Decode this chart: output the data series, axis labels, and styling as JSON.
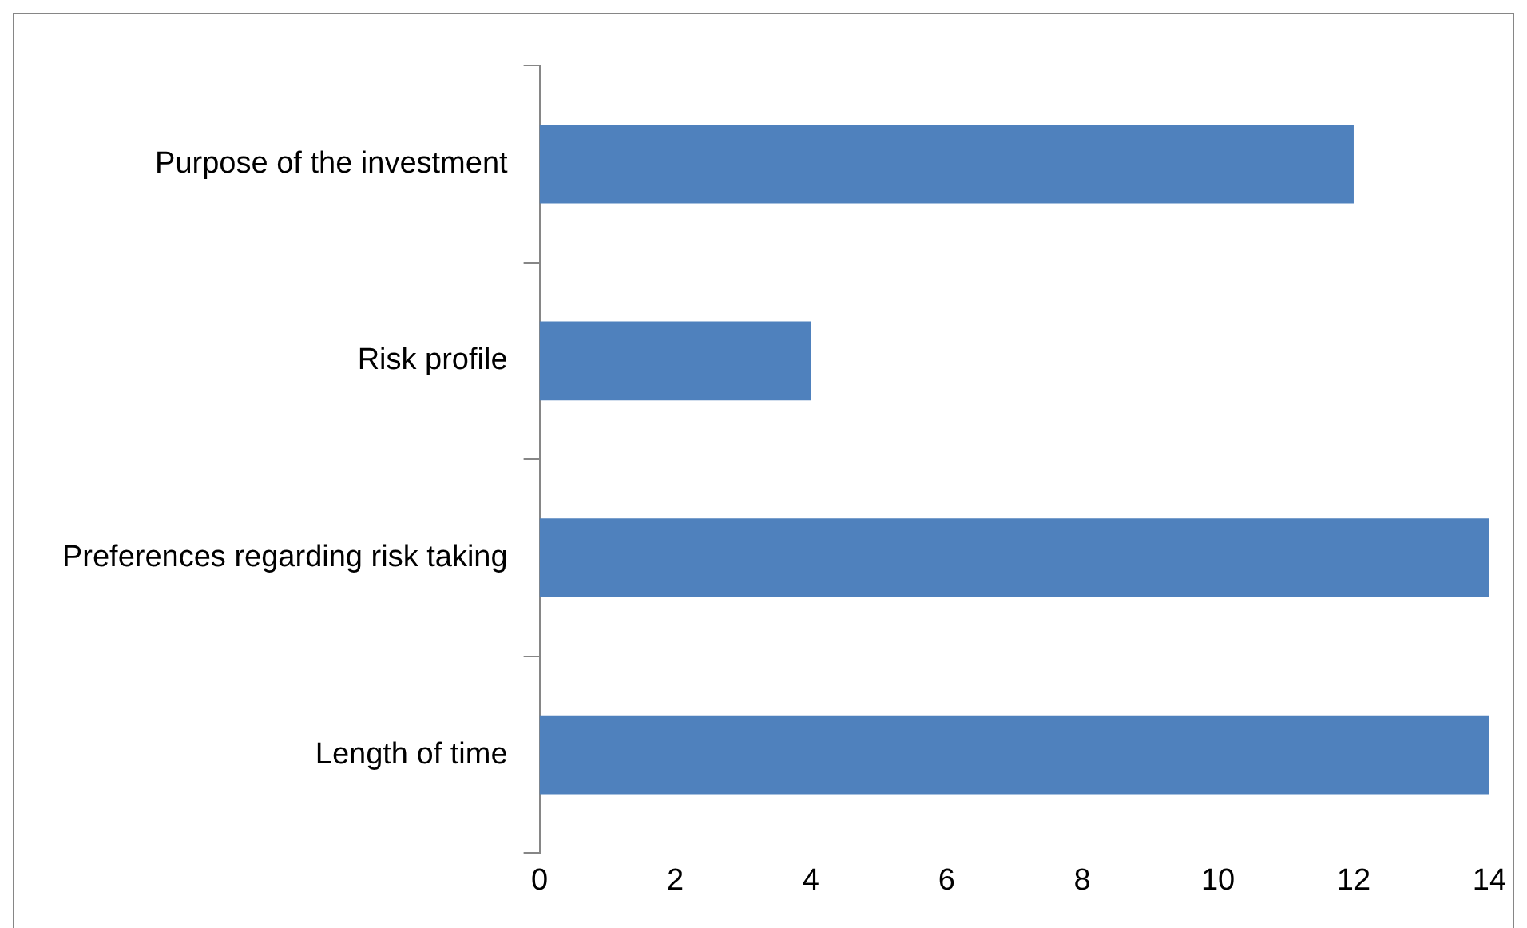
{
  "chart_data": {
    "type": "bar",
    "orientation": "horizontal",
    "categories": [
      "Purpose of the investment",
      "Risk profile",
      "Preferences regarding risk taking",
      "Length of time"
    ],
    "values": [
      12,
      4,
      14,
      14
    ],
    "color": "#4f81bd",
    "xlim": [
      0,
      14
    ],
    "xticks": [
      0,
      2,
      4,
      6,
      8,
      10,
      12,
      14
    ],
    "grid": false,
    "legend": false
  }
}
